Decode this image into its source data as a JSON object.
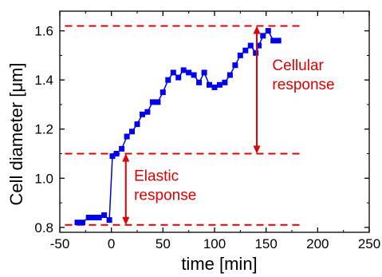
{
  "colors": {
    "series": "#0000ee",
    "annotation": "#e00000",
    "axis": "#000000"
  },
  "chart_data": {
    "type": "line",
    "xlabel": "time [min]",
    "ylabel": "Cell diameter [μm]",
    "xlim": [
      -50,
      250
    ],
    "ylim": [
      0.78,
      1.68
    ],
    "xticks": [
      "-50",
      "0",
      "50",
      "100",
      "150",
      "200",
      "250"
    ],
    "xtick_values": [
      -50,
      0,
      50,
      100,
      150,
      200,
      250
    ],
    "yticks": [
      "0.8",
      "1.0",
      "1.2",
      "1.4",
      "1.6"
    ],
    "ytick_values": [
      0.8,
      1.0,
      1.2,
      1.4,
      1.6
    ],
    "grid": false,
    "series": [
      {
        "marker": "square",
        "x": [
          -33,
          -28,
          -22,
          -17,
          -12,
          -7,
          -2,
          1,
          5,
          10,
          15,
          20,
          25,
          30,
          35,
          40,
          45,
          50,
          55,
          60,
          65,
          70,
          75,
          80,
          85,
          90,
          95,
          100,
          105,
          110,
          115,
          120,
          125,
          130,
          135,
          140,
          143,
          147,
          152,
          157,
          162
        ],
        "y": [
          0.82,
          0.82,
          0.84,
          0.84,
          0.84,
          0.85,
          0.83,
          1.09,
          1.1,
          1.12,
          1.17,
          1.19,
          1.22,
          1.26,
          1.27,
          1.31,
          1.31,
          1.35,
          1.4,
          1.43,
          1.41,
          1.44,
          1.43,
          1.42,
          1.39,
          1.43,
          1.38,
          1.37,
          1.38,
          1.39,
          1.42,
          1.46,
          1.5,
          1.52,
          1.54,
          1.51,
          1.54,
          1.58,
          1.6,
          1.56,
          1.56
        ]
      }
    ],
    "reference_lines": [
      {
        "y": 1.62,
        "x_from": -45,
        "x_to": 186
      },
      {
        "y": 1.1,
        "x_from": -45,
        "x_to": 186
      },
      {
        "y": 0.81,
        "x_from": -45,
        "x_to": 186
      }
    ],
    "annotations": [
      {
        "text": [
          "Cellular",
          "response"
        ],
        "arrow_x": 141,
        "y_from": 1.1,
        "y_to": 1.62,
        "label_x": 156,
        "label_y": 1.42
      },
      {
        "text": [
          "Elastic",
          "response"
        ],
        "arrow_x": 14,
        "y_from": 0.81,
        "y_to": 1.1,
        "label_x": 22,
        "label_y": 0.97
      }
    ]
  }
}
